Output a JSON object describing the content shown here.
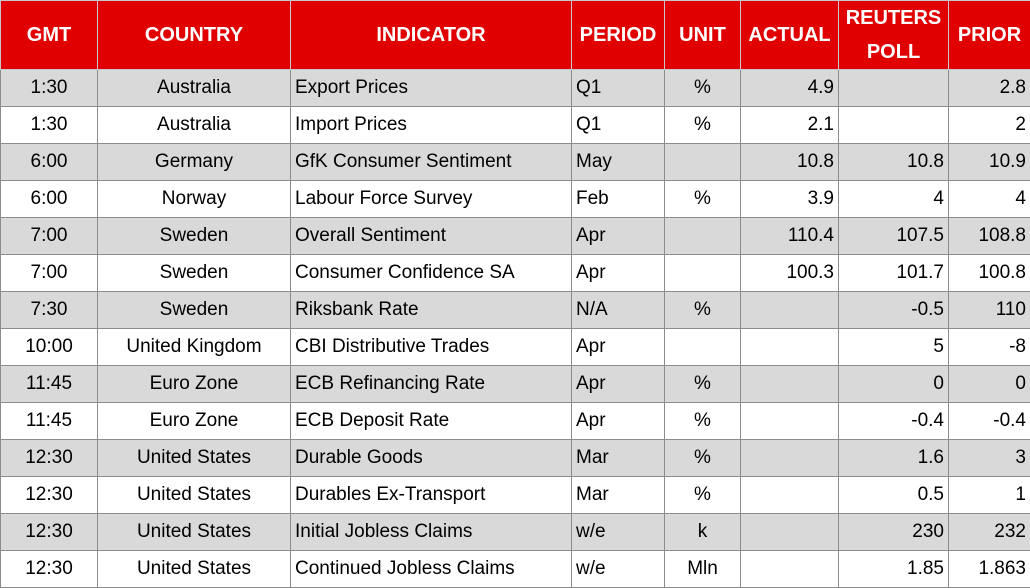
{
  "table": {
    "header": [
      "GMT",
      "COUNTRY",
      "INDICATOR",
      "PERIOD",
      "UNIT",
      "ACTUAL",
      "REUTERS POLL",
      "PRIOR"
    ],
    "rows": [
      [
        "1:30",
        "Australia",
        "Export Prices",
        "Q1",
        "%",
        "4.9",
        null,
        "2.8"
      ],
      [
        "1:30",
        "Australia",
        "Import Prices",
        "Q1",
        "%",
        "2.1",
        null,
        "2"
      ],
      [
        "6:00",
        "Germany",
        "GfK Consumer Sentiment",
        "May",
        null,
        "10.8",
        "10.8",
        "10.9"
      ],
      [
        "6:00",
        "Norway",
        "Labour Force Survey",
        "Feb",
        "%",
        "3.9",
        "4",
        "4"
      ],
      [
        "7:00",
        "Sweden",
        "Overall Sentiment",
        "Apr",
        null,
        "110.4",
        "107.5",
        "108.8"
      ],
      [
        "7:00",
        "Sweden",
        "Consumer Confidence SA",
        "Apr",
        null,
        "100.3",
        "101.7",
        "100.8"
      ],
      [
        "7:30",
        "Sweden",
        "Riksbank Rate",
        "N/A",
        "%",
        null,
        "-0.5",
        "110"
      ],
      [
        "10:00",
        "United Kingdom",
        "CBI Distributive Trades",
        "Apr",
        null,
        null,
        "5",
        "-8"
      ],
      [
        "11:45",
        "Euro Zone",
        "ECB Refinancing Rate",
        "Apr",
        "%",
        null,
        "0",
        "0"
      ],
      [
        "11:45",
        "Euro Zone",
        "ECB Deposit Rate",
        "Apr",
        "%",
        null,
        "-0.4",
        "-0.4"
      ],
      [
        "12:30",
        "United States",
        "Durable Goods",
        "Mar",
        "%",
        null,
        "1.6",
        "3"
      ],
      [
        "12:30",
        "United States",
        "Durables Ex-Transport",
        "Mar",
        "%",
        null,
        "0.5",
        "1"
      ],
      [
        "12:30",
        "United States",
        "Initial Jobless Claims",
        "w/e",
        "k",
        null,
        "230",
        "232"
      ],
      [
        "12:30",
        "United States",
        "Continued Jobless Claims",
        "w/e",
        "Mln",
        null,
        "1.85",
        "1.863"
      ]
    ]
  }
}
